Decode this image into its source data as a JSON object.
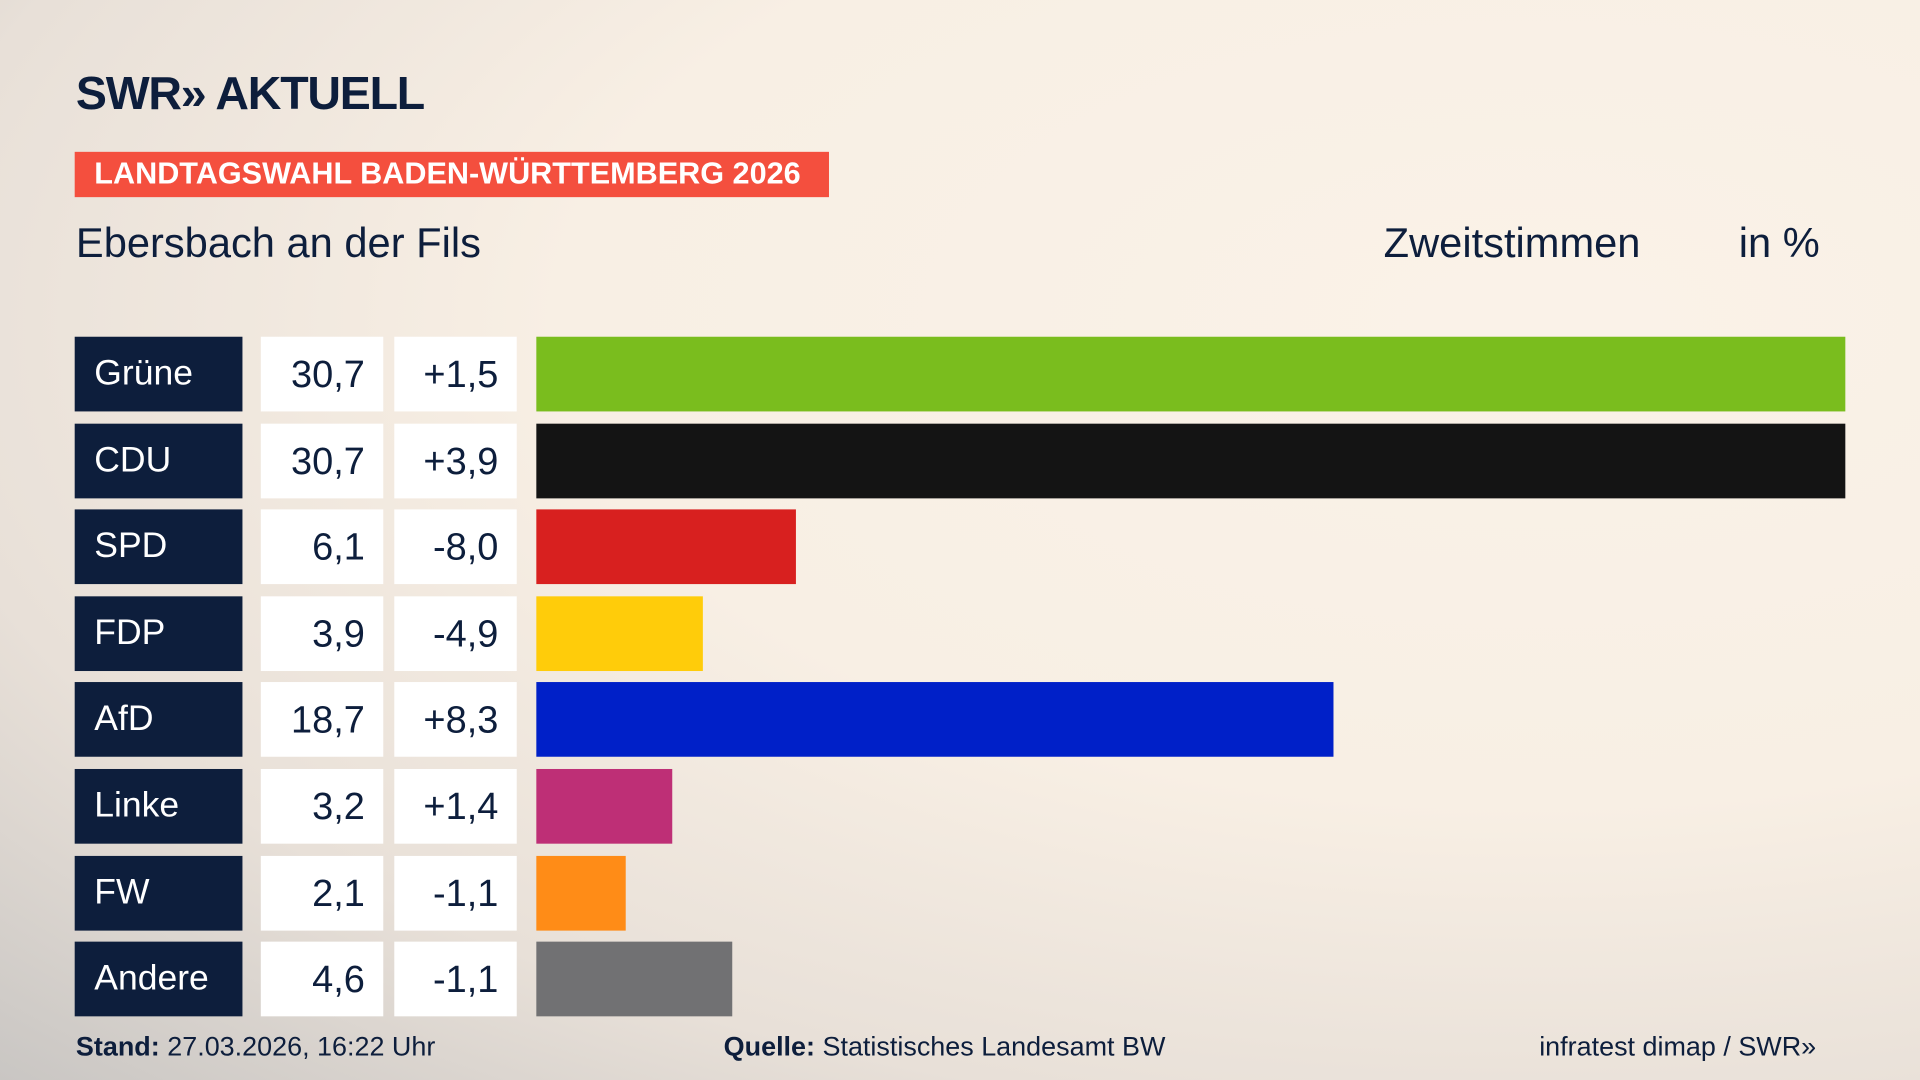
{
  "header": {
    "logo": "SWR» AKTUELL",
    "banner": "LANDTAGSWAHL BADEN-WÜRTTEMBERG 2026",
    "region": "Ebersbach an der Fils",
    "metric": "Zweitstimmen",
    "unit": "in %"
  },
  "chart_data": {
    "type": "bar",
    "orientation": "horizontal",
    "xlim": [
      0,
      30.7
    ],
    "grid": false,
    "categories": [
      "Grüne",
      "CDU",
      "SPD",
      "FDP",
      "AfD",
      "Linke",
      "FW",
      "Andere"
    ],
    "values": [
      30.7,
      30.7,
      6.1,
      3.9,
      18.7,
      3.2,
      2.1,
      4.6
    ],
    "value_labels": [
      "30,7",
      "30,7",
      "6,1",
      "3,9",
      "18,7",
      "3,2",
      "2,1",
      "4,6"
    ],
    "diff_labels": [
      "+1,5",
      "+3,9",
      "-8,0",
      "-4,9",
      "+8,3",
      "+1,4",
      "-1,1",
      "-1,1"
    ],
    "colors": [
      "#7abd1e",
      "#141414",
      "#d8201f",
      "#ffcc0a",
      "#0020c8",
      "#be2f76",
      "#ff8c17",
      "#717173"
    ]
  },
  "footer": {
    "stand_label": "Stand:",
    "stand_value": "27.03.2026, 16:22 Uhr",
    "source_label": "Quelle:",
    "source_value": "Statistisches Landesamt BW",
    "credit": "infratest dimap / SWR»"
  }
}
